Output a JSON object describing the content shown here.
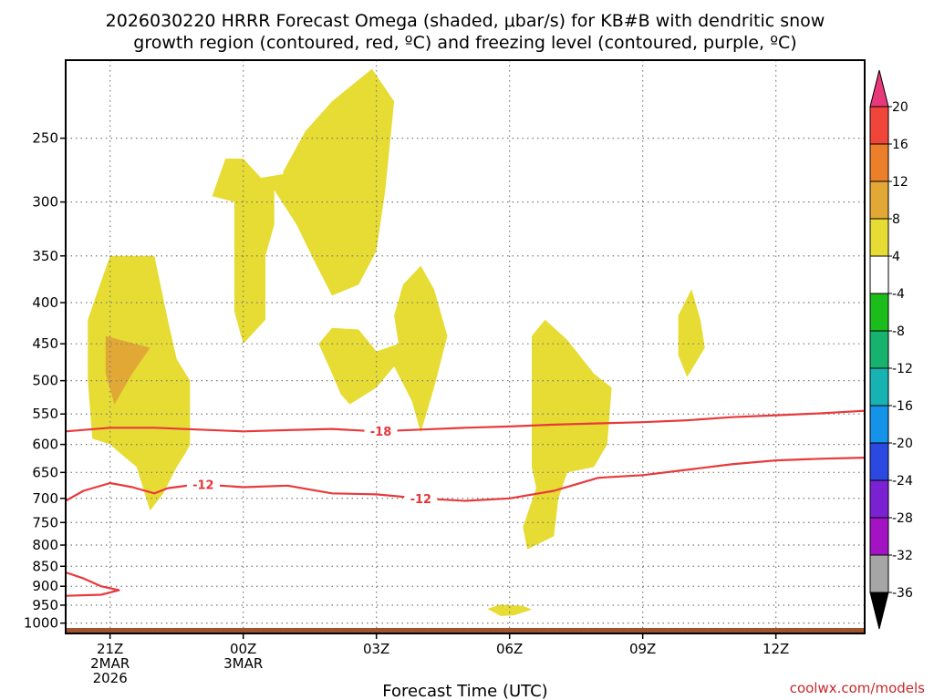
{
  "title_line1": "2026030220 HRRR Forecast Omega (shaded, μbar/s) for KB#B with dendritic snow",
  "title_line2": "growth region (contoured, red, ºC) and freezing level (contoured, purple, ºC)",
  "credit": "coolwx.com/models",
  "chart_data": {
    "type": "time-height cross section",
    "xlabel": "Forecast Time (UTC)",
    "ylabel": "",
    "x_ticks": [
      {
        "hour": 0,
        "lines": [
          "21Z",
          "2MAR",
          "2026"
        ]
      },
      {
        "hour": 3,
        "lines": [
          "00Z",
          "3MAR"
        ]
      },
      {
        "hour": 6,
        "lines": [
          "03Z"
        ]
      },
      {
        "hour": 9,
        "lines": [
          "06Z"
        ]
      },
      {
        "hour": 12,
        "lines": [
          "09Z"
        ]
      },
      {
        "hour": 15,
        "lines": [
          "12Z"
        ]
      }
    ],
    "xlim": [
      -1,
      17
    ],
    "y_ticks": [
      250,
      300,
      350,
      400,
      450,
      500,
      550,
      600,
      650,
      700,
      750,
      800,
      850,
      900,
      950,
      1000
    ],
    "ylim_hPa": [
      200,
      1030
    ],
    "colorbar": {
      "unit": "μbar/s",
      "labels": [
        "20",
        "16",
        "12",
        "8",
        "4",
        "-4",
        "-8",
        "-12",
        "-16",
        "-20",
        "-24",
        "-28",
        "-32",
        "-36"
      ],
      "colors": [
        "#e8397a",
        "#f0463a",
        "#ec7f2a",
        "#e2a836",
        "#e6dc33",
        "#ffffff",
        "#1bbd1b",
        "#16b36e",
        "#17b3b3",
        "#1593e8",
        "#2b48e0",
        "#7a22d3",
        "#a313c3",
        "#a6a6a6",
        "#000000"
      ]
    },
    "omega_regions": [
      {
        "level": "4-8",
        "color": "#e6dc33",
        "points": [
          [
            0,
            350
          ],
          [
            1,
            350
          ],
          [
            1.3,
            420
          ],
          [
            1.5,
            470
          ],
          [
            1.8,
            500
          ],
          [
            1.8,
            600
          ],
          [
            1.7,
            615
          ],
          [
            1.5,
            640
          ],
          [
            1.2,
            690
          ],
          [
            0.9,
            725
          ],
          [
            0.6,
            640
          ],
          [
            0.3,
            620
          ],
          [
            0,
            600
          ],
          [
            -0.4,
            590
          ],
          [
            -0.5,
            500
          ],
          [
            -0.5,
            420
          ],
          [
            -0.3,
            390
          ]
        ]
      },
      {
        "level": "8-12",
        "color": "#e2a836",
        "points": [
          [
            -0.1,
            440
          ],
          [
            0.9,
            455
          ],
          [
            0.5,
            490
          ],
          [
            0.1,
            535
          ],
          [
            -0.1,
            490
          ]
        ]
      },
      {
        "level": "4-8",
        "color": "#e6dc33",
        "points": [
          [
            2.3,
            295
          ],
          [
            2.6,
            265
          ],
          [
            3,
            265
          ],
          [
            3.4,
            280
          ],
          [
            3.9,
            277
          ],
          [
            3.9,
            275
          ],
          [
            4.4,
            245
          ],
          [
            5,
            225
          ],
          [
            5.9,
            205
          ],
          [
            6.4,
            225
          ],
          [
            6.2,
            290
          ],
          [
            6,
            345
          ],
          [
            5.6,
            380
          ],
          [
            5,
            392
          ],
          [
            4.6,
            355
          ],
          [
            4.2,
            320
          ],
          [
            3.7,
            290
          ],
          [
            3.7,
            320
          ],
          [
            3.5,
            350
          ],
          [
            3.5,
            420
          ],
          [
            3,
            450
          ],
          [
            2.8,
            410
          ],
          [
            2.8,
            300
          ]
        ]
      },
      {
        "level": "4-8",
        "color": "#e6dc33",
        "points": [
          [
            4.7,
            450
          ],
          [
            5,
            430
          ],
          [
            5.6,
            432
          ],
          [
            6,
            460
          ],
          [
            6.5,
            450
          ],
          [
            6.4,
            415
          ],
          [
            6.6,
            380
          ],
          [
            7,
            360
          ],
          [
            7.3,
            385
          ],
          [
            7.6,
            440
          ],
          [
            7.3,
            510
          ],
          [
            7,
            580
          ],
          [
            6.8,
            530
          ],
          [
            6.4,
            480
          ],
          [
            6,
            510
          ],
          [
            5.4,
            535
          ],
          [
            5.2,
            520
          ],
          [
            5,
            490
          ]
        ]
      },
      {
        "level": "4-8",
        "color": "#e6dc33",
        "points": [
          [
            9.5,
            440
          ],
          [
            9.8,
            420
          ],
          [
            10.3,
            445
          ],
          [
            10.9,
            490
          ],
          [
            11.3,
            510
          ],
          [
            11.2,
            600
          ],
          [
            10.9,
            640
          ],
          [
            10.3,
            650
          ],
          [
            10.1,
            700
          ],
          [
            10,
            780
          ],
          [
            9.4,
            810
          ],
          [
            9.3,
            760
          ],
          [
            9.6,
            680
          ],
          [
            9.5,
            640
          ],
          [
            9.5,
            540
          ]
        ]
      },
      {
        "level": "4-8",
        "color": "#e6dc33",
        "points": [
          [
            12.8,
            415
          ],
          [
            13.1,
            385
          ],
          [
            13.3,
            420
          ],
          [
            13.4,
            455
          ],
          [
            13,
            495
          ],
          [
            12.8,
            465
          ]
        ]
      },
      {
        "level": "4-8",
        "color": "#e6dc33",
        "points": [
          [
            8.5,
            960
          ],
          [
            8.8,
            948
          ],
          [
            9.3,
            952
          ],
          [
            9.5,
            962
          ],
          [
            9.1,
            978
          ],
          [
            8.8,
            980
          ]
        ]
      }
    ],
    "contours": [
      {
        "value": "-18",
        "label": "-18",
        "color": "#e8393c",
        "label_at_hour": 6.1,
        "points": [
          [
            -1,
            578
          ],
          [
            0,
            572
          ],
          [
            1,
            572
          ],
          [
            2,
            575
          ],
          [
            3,
            578
          ],
          [
            4,
            576
          ],
          [
            5,
            574
          ],
          [
            6,
            578
          ],
          [
            7,
            575
          ],
          [
            8,
            572
          ],
          [
            9,
            570
          ],
          [
            10,
            567
          ],
          [
            11,
            565
          ],
          [
            12,
            563
          ],
          [
            13,
            560
          ],
          [
            14,
            555
          ],
          [
            15,
            552
          ],
          [
            16,
            549
          ],
          [
            17,
            545
          ]
        ]
      },
      {
        "value": "-12",
        "label": "-12",
        "color": "#e8393c",
        "label_at_hour": [
          2.1,
          7.0
        ],
        "points": [
          [
            -1,
            705
          ],
          [
            -0.6,
            685
          ],
          [
            0,
            670
          ],
          [
            0.5,
            678
          ],
          [
            1,
            690
          ],
          [
            1.3,
            680
          ],
          [
            2,
            672
          ],
          [
            3,
            678
          ],
          [
            4,
            675
          ],
          [
            5,
            690
          ],
          [
            6,
            692
          ],
          [
            7,
            700
          ],
          [
            8,
            705
          ],
          [
            9,
            700
          ],
          [
            10,
            685
          ],
          [
            11,
            660
          ],
          [
            12,
            655
          ],
          [
            13,
            645
          ],
          [
            14,
            635
          ],
          [
            15,
            628
          ],
          [
            16,
            625
          ],
          [
            17,
            623
          ]
        ]
      },
      {
        "value": "-12",
        "label": "",
        "color": "#e8393c",
        "label_at_hour": null,
        "points": [
          [
            -1,
            865
          ],
          [
            -0.6,
            880
          ],
          [
            -0.2,
            900
          ],
          [
            0.2,
            910
          ],
          [
            -0.2,
            922
          ],
          [
            -1,
            925
          ]
        ]
      }
    ],
    "ground_bar": {
      "color": "#a0522d",
      "segments": [
        [
          -1,
          17
        ]
      ]
    }
  }
}
